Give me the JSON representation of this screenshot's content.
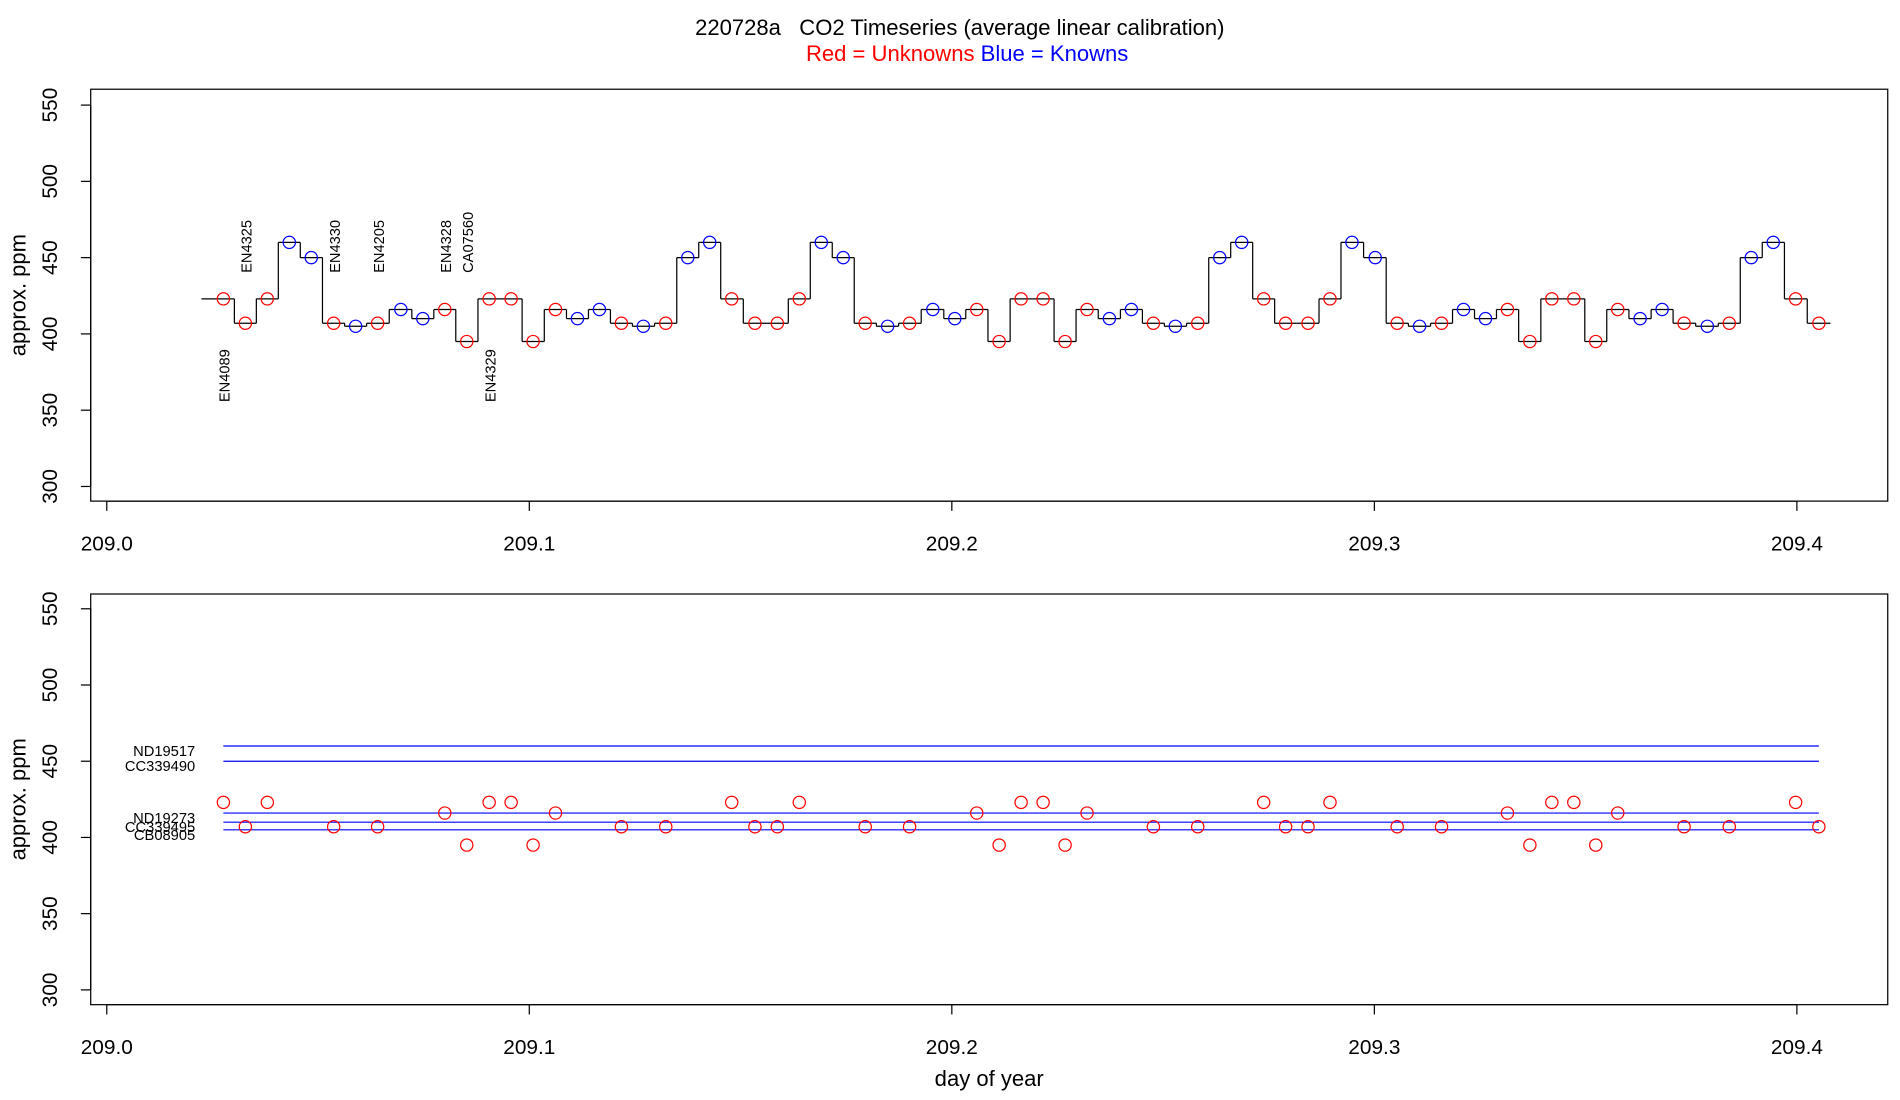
{
  "chart_data": [
    {
      "type": "step",
      "title": "220728a   CO2 Timeseries (average linear calibration)",
      "subtitle": [
        {
          "text": "Red = Unknowns",
          "color": "#ff0000"
        },
        {
          "text": "Blue = Knowns",
          "color": "#0000ff"
        }
      ],
      "y_label": "approx. ppm",
      "xlim": [
        208.9962,
        209.4215
      ],
      "ylim": [
        290.4,
        560.4
      ],
      "xticks": [
        {
          "value": 209,
          "label": "209.0"
        },
        209.1,
        209.2,
        209.3,
        209.4
      ],
      "yticks": [
        300,
        350,
        400,
        450,
        500,
        550
      ],
      "line_color": "#000000",
      "series": [
        {
          "color": "#ff0000",
          "x": [
            209.0276,
            209.0328,
            209.038,
            209.0537,
            209.0641,
            209.08,
            209.0852,
            209.0905,
            209.0957,
            209.1009,
            209.1062,
            209.1218,
            209.1323,
            209.1479,
            209.1534,
            209.1587,
            209.1639,
            209.1795,
            209.19,
            209.2059,
            209.2112,
            209.2164,
            209.2216,
            209.2268,
            209.232,
            209.2477,
            209.2582,
            209.2738,
            209.279,
            209.2843,
            209.2895,
            209.3054,
            209.3159,
            209.3315,
            209.3368,
            209.342,
            209.3472,
            209.3524,
            209.3576,
            209.3733,
            209.384,
            209.3997,
            209.4052
          ],
          "values": [
            423,
            407,
            423,
            407,
            407,
            416,
            395,
            423,
            423,
            395,
            416,
            407,
            407,
            423,
            407,
            407,
            423,
            407,
            407,
            416,
            395,
            423,
            423,
            395,
            416,
            407,
            407,
            423,
            407,
            407,
            423,
            407,
            407,
            416,
            395,
            423,
            423,
            395,
            416,
            407,
            407,
            423,
            407
          ]
        },
        {
          "color": "#0000ff",
          "x": [
            209.0432,
            209.0484,
            209.0589,
            209.0696,
            209.0748,
            209.1114,
            209.1166,
            209.127,
            209.1375,
            209.1427,
            209.1691,
            209.1743,
            209.1848,
            209.1955,
            209.2007,
            209.2373,
            209.2425,
            209.2529,
            209.2634,
            209.2686,
            209.2947,
            209.3002,
            209.3107,
            209.3211,
            209.3263,
            209.3629,
            209.3681,
            209.3788,
            209.3892,
            209.3944
          ],
          "values": [
            460,
            450,
            405,
            416,
            410,
            410,
            416,
            405,
            450,
            460,
            460,
            450,
            405,
            416,
            410,
            410,
            416,
            405,
            450,
            460,
            460,
            450,
            405,
            416,
            410,
            410,
            416,
            405,
            450,
            460
          ]
        }
      ],
      "annotations": [
        {
          "text": "EN4089",
          "x": 209.0276,
          "side": "below"
        },
        {
          "text": "EN4325",
          "x": 209.0328,
          "side": "above"
        },
        {
          "text": "EN4330",
          "x": 209.0537,
          "side": "above"
        },
        {
          "text": "EN4205",
          "x": 209.0641,
          "side": "above"
        },
        {
          "text": "EN4328",
          "x": 209.08,
          "side": "above"
        },
        {
          "text": "CA07560",
          "x": 209.0852,
          "side": "above"
        },
        {
          "text": "EN4329",
          "x": 209.0905,
          "side": "below"
        }
      ],
      "annotation_color": "#ff0000"
    },
    {
      "type": "scatter",
      "y_label": "approx. ppm",
      "x_label": "day of year",
      "xlim": [
        208.9962,
        209.4215
      ],
      "ylim": [
        290.3,
        559.7
      ],
      "xticks": [
        {
          "value": 209,
          "label": "209.0"
        },
        209.1,
        209.2,
        209.3,
        209.4
      ],
      "yticks": [
        300,
        350,
        400,
        450,
        500,
        550
      ],
      "series": [
        {
          "color": "#ff0000",
          "x": [
            209.0276,
            209.0328,
            209.038,
            209.0537,
            209.0641,
            209.08,
            209.0852,
            209.0905,
            209.0957,
            209.1009,
            209.1062,
            209.1218,
            209.1323,
            209.1479,
            209.1534,
            209.1587,
            209.1639,
            209.1795,
            209.19,
            209.2059,
            209.2112,
            209.2164,
            209.2216,
            209.2268,
            209.232,
            209.2477,
            209.2582,
            209.2738,
            209.279,
            209.2843,
            209.2895,
            209.3054,
            209.3159,
            209.3315,
            209.3368,
            209.342,
            209.3472,
            209.3524,
            209.3576,
            209.3733,
            209.384,
            209.3997,
            209.4052
          ],
          "values": [
            423,
            407,
            423,
            407,
            407,
            416,
            395,
            423,
            423,
            395,
            416,
            407,
            407,
            423,
            407,
            407,
            423,
            407,
            407,
            416,
            395,
            423,
            423,
            395,
            416,
            407,
            407,
            423,
            407,
            407,
            423,
            407,
            407,
            416,
            395,
            423,
            423,
            395,
            416,
            407,
            407,
            423,
            407
          ]
        }
      ],
      "reference_color": "#0000ff",
      "reference_lines": [
        {
          "label": "ND19517",
          "value": 460
        },
        {
          "label": "CC339490",
          "value": 450
        },
        {
          "label": "ND19273",
          "value": 416
        },
        {
          "label": "CC339495",
          "value": 410
        },
        {
          "label": "CB08905",
          "value": 405
        }
      ]
    }
  ]
}
